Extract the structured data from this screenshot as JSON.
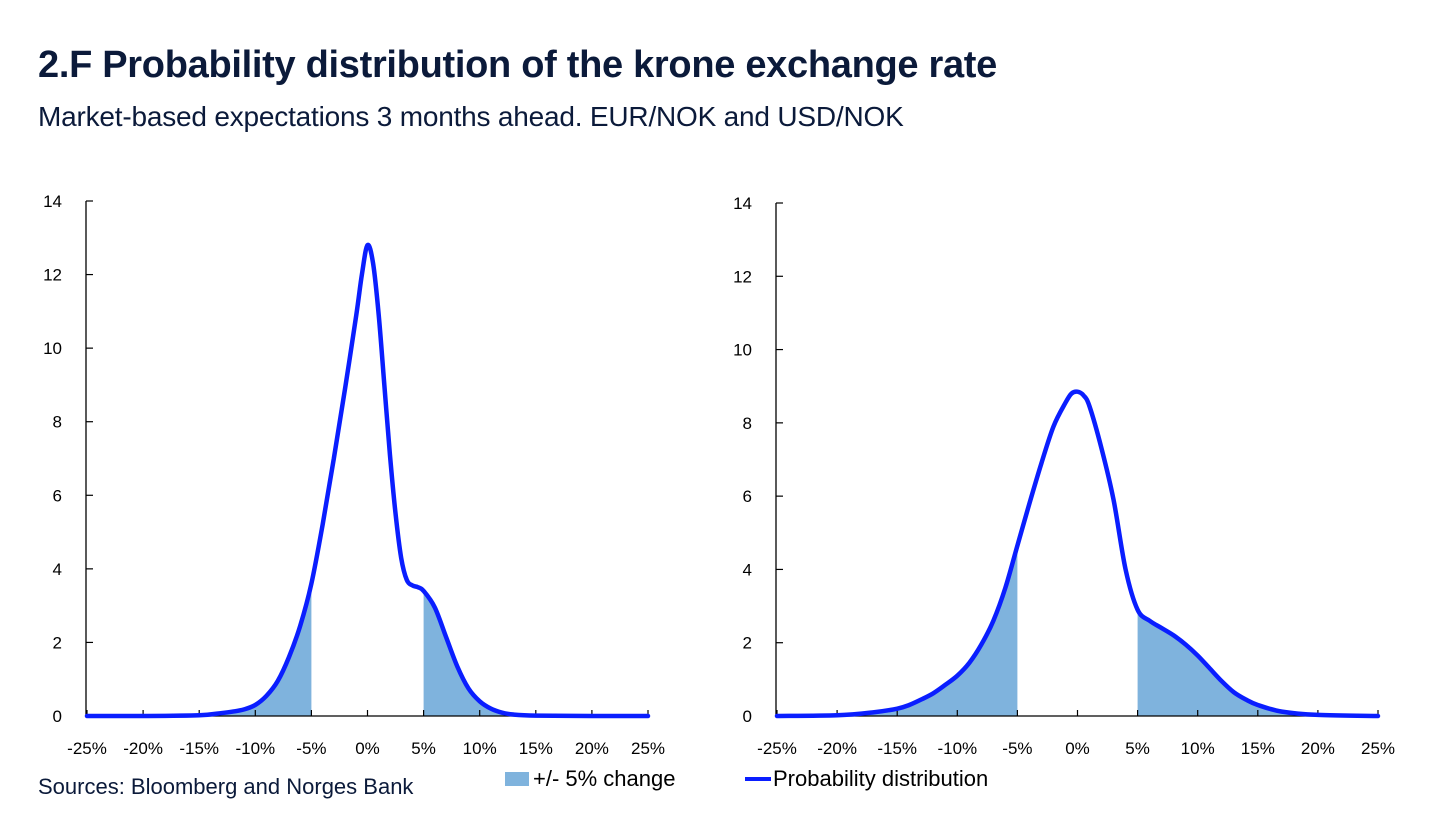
{
  "header": {
    "title": "2.F Probability distribution of the krone exchange rate",
    "subtitle": "Market-based expectations 3 months ahead. EUR/NOK and USD/NOK"
  },
  "footer": {
    "sources": "Sources: Bloomberg and Norges Bank"
  },
  "legend": {
    "items": [
      {
        "label": "+/- 5% change",
        "type": "area",
        "color": "#7fb3dd"
      },
      {
        "label": "Probability distribution",
        "type": "line",
        "color": "#0a1eff"
      }
    ]
  },
  "colors": {
    "line": "#0a1eff",
    "shade": "#7fb3dd",
    "axis": "#000000",
    "title": "#0b1a3a"
  },
  "chart_data": [
    {
      "type": "area",
      "name": "EUR/NOK",
      "title": "",
      "xlabel": "",
      "ylabel": "",
      "xlim": [
        -25,
        25
      ],
      "ylim": [
        0,
        14
      ],
      "xticks": [
        -25,
        -20,
        -15,
        -10,
        -5,
        0,
        5,
        10,
        15,
        20,
        25
      ],
      "xtick_labels": [
        "-25%",
        "-20%",
        "-15%",
        "-10%",
        "-5%",
        "0%",
        "5%",
        "10%",
        "15%",
        "20%",
        "25%"
      ],
      "yticks": [
        0,
        2,
        4,
        6,
        8,
        10,
        12,
        14
      ],
      "ytick_labels": [
        "0",
        "2",
        "4",
        "6",
        "8",
        "10",
        "12",
        "14"
      ],
      "shade_outside": [
        -5,
        5
      ],
      "series": [
        {
          "name": "Probability distribution",
          "x": [
            -25,
            -20,
            -15,
            -13,
            -12,
            -11,
            -10,
            -9,
            -8,
            -7,
            -6,
            -5,
            -4,
            -3,
            -2,
            -1,
            -0.5,
            0,
            0.5,
            1,
            1.5,
            2,
            2.5,
            3,
            3.5,
            4,
            4.5,
            5,
            6,
            7,
            8,
            9,
            10,
            11,
            12,
            13,
            15,
            20,
            25
          ],
          "y": [
            0,
            0,
            0.02,
            0.08,
            0.12,
            0.18,
            0.3,
            0.55,
            0.95,
            1.6,
            2.45,
            3.6,
            5.2,
            7.0,
            8.9,
            10.9,
            12.0,
            12.8,
            12.3,
            10.9,
            9.0,
            7.1,
            5.5,
            4.3,
            3.7,
            3.55,
            3.5,
            3.4,
            2.95,
            2.15,
            1.35,
            0.75,
            0.4,
            0.2,
            0.09,
            0.04,
            0.01,
            0,
            0
          ]
        }
      ]
    },
    {
      "type": "area",
      "name": "USD/NOK",
      "title": "",
      "xlabel": "",
      "ylabel": "",
      "xlim": [
        -25,
        25
      ],
      "ylim": [
        0,
        14
      ],
      "xticks": [
        -25,
        -20,
        -15,
        -10,
        -5,
        0,
        5,
        10,
        15,
        20,
        25
      ],
      "xtick_labels": [
        "-25%",
        "-20%",
        "-15%",
        "-10%",
        "-5%",
        "0%",
        "5%",
        "10%",
        "15%",
        "20%",
        "25%"
      ],
      "yticks": [
        0,
        2,
        4,
        6,
        8,
        10,
        12,
        14
      ],
      "ytick_labels": [
        "0",
        "2",
        "4",
        "6",
        "8",
        "10",
        "12",
        "14"
      ],
      "shade_outside": [
        -5,
        5
      ],
      "series": [
        {
          "name": "Probability distribution",
          "x": [
            -25,
            -20,
            -17,
            -15,
            -14,
            -13,
            -12,
            -11,
            -10,
            -9,
            -8,
            -7,
            -6,
            -5,
            -4,
            -3,
            -2,
            -1,
            -0.5,
            0,
            0.5,
            1,
            2,
            3,
            4,
            5,
            6,
            7,
            8,
            9,
            10,
            11,
            12,
            13,
            14,
            15,
            17,
            20,
            25
          ],
          "y": [
            0,
            0.02,
            0.1,
            0.2,
            0.3,
            0.45,
            0.62,
            0.85,
            1.1,
            1.45,
            1.95,
            2.6,
            3.5,
            4.65,
            5.8,
            6.9,
            7.9,
            8.55,
            8.8,
            8.85,
            8.75,
            8.45,
            7.3,
            5.9,
            4.0,
            2.9,
            2.6,
            2.4,
            2.2,
            1.95,
            1.65,
            1.3,
            0.95,
            0.65,
            0.45,
            0.3,
            0.12,
            0.03,
            0
          ]
        }
      ]
    }
  ]
}
